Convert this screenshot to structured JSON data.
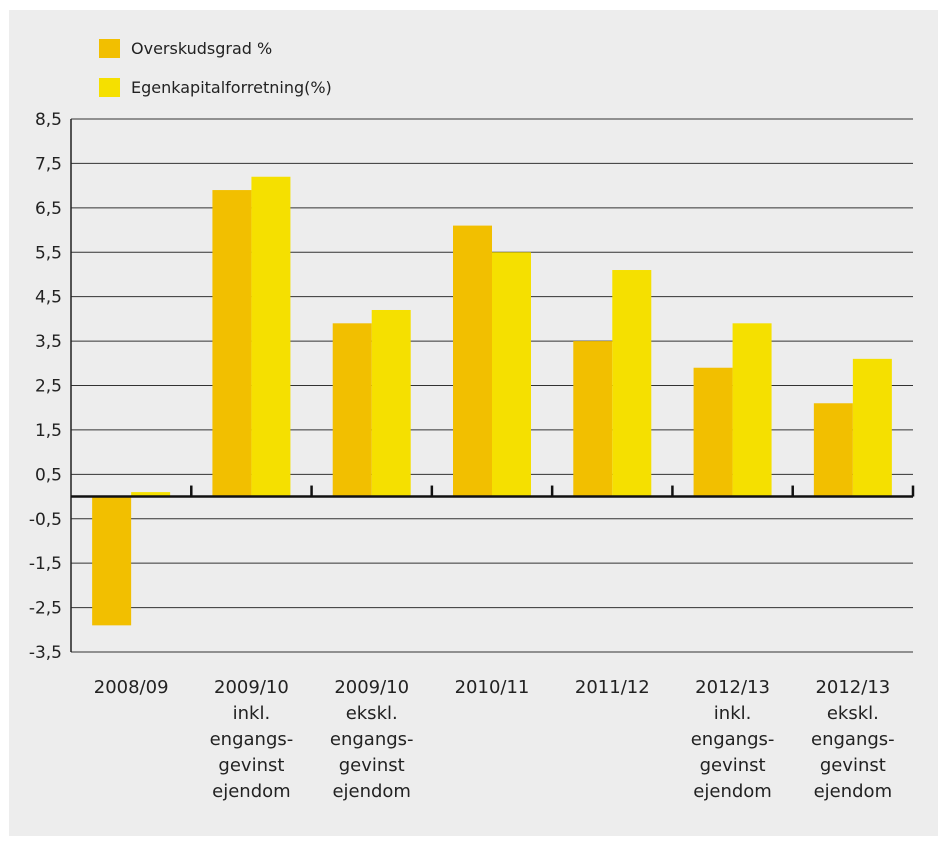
{
  "chart_data": {
    "type": "bar",
    "categories": [
      [
        "2008/09"
      ],
      [
        "2009/10",
        "inkl.",
        "engangs-",
        "gevinst",
        "ejendom"
      ],
      [
        "2009/10",
        "ekskl.",
        "engangs-",
        "gevinst",
        "ejendom"
      ],
      [
        "2010/11"
      ],
      [
        "2011/12"
      ],
      [
        "2012/13",
        "inkl.",
        "engangs-",
        "gevinst",
        "ejendom"
      ],
      [
        "2012/13",
        "ekskl.",
        "engangs-",
        "gevinst",
        "ejendom"
      ]
    ],
    "series": [
      {
        "name": "Overskudsgrad %",
        "color": "#f2bf00",
        "values": [
          -2.9,
          6.9,
          3.9,
          6.1,
          3.5,
          2.9,
          2.1
        ]
      },
      {
        "name": "Egenkapitalforretning(%)",
        "color": "#f5e000",
        "values": [
          0.1,
          7.2,
          4.2,
          5.5,
          5.1,
          3.9,
          3.1
        ]
      }
    ],
    "yticks": [
      "8,5",
      "7,5",
      "6,5",
      "5,5",
      "4,5",
      "3,5",
      "2,5",
      "1,5",
      "0,5",
      "-0,5",
      "-1,5",
      "-2,5",
      "-3,5"
    ],
    "ylim": [
      -3.5,
      8.5
    ],
    "grid": true,
    "legend_position": "top-left"
  }
}
